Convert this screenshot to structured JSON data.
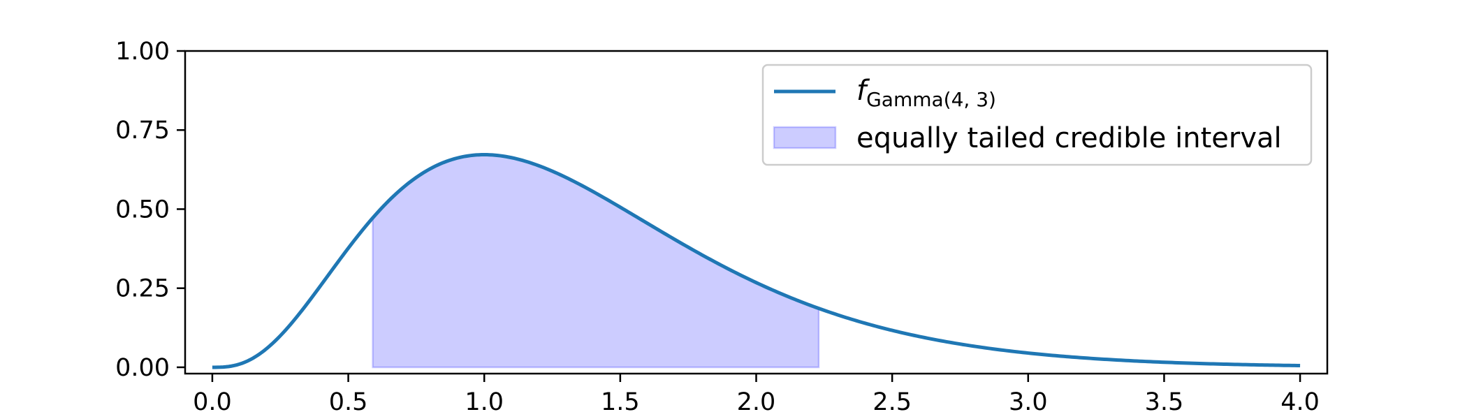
{
  "chart_data": {
    "type": "area",
    "xlim": [
      -0.1,
      4.1
    ],
    "ylim": [
      -0.02,
      1.0
    ],
    "x_ticks": [
      0.0,
      0.5,
      1.0,
      1.5,
      2.0,
      2.5,
      3.0,
      3.5,
      4.0
    ],
    "x_tick_labels": [
      "0.0",
      "0.5",
      "1.0",
      "1.5",
      "2.0",
      "2.5",
      "3.0",
      "3.5",
      "4.0"
    ],
    "y_ticks": [
      0.0,
      0.25,
      0.5,
      0.75,
      1.0
    ],
    "y_tick_labels": [
      "0.00",
      "0.25",
      "0.50",
      "0.75",
      "1.00"
    ],
    "grid": false,
    "legend_placement": "upper-right",
    "series": [
      {
        "kind": "line",
        "distribution": "Gamma",
        "shape": 4,
        "rate": 3,
        "x_range": [
          0.0,
          4.0
        ],
        "color": "#1f77b4",
        "legend_main": "f",
        "legend_sub": "Gamma(4, 3)"
      },
      {
        "kind": "fill",
        "x_range": [
          0.59,
          2.23
        ],
        "color": "#0000ff",
        "legend_label": "equally tailed credible interval"
      }
    ]
  }
}
